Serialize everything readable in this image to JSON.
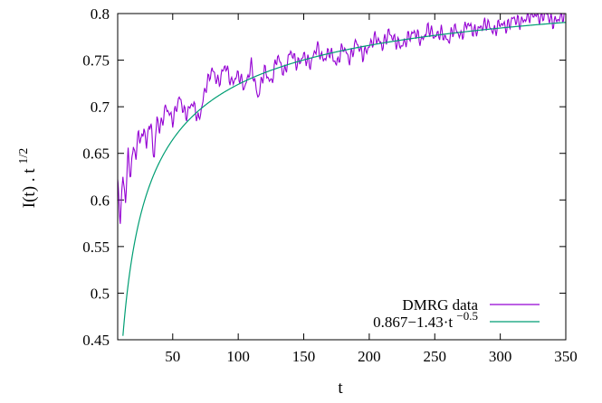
{
  "chart_data": {
    "type": "line",
    "xlabel": "t",
    "ylabel_main": "I(t) . t",
    "ylabel_sup": "1/2",
    "xlim": [
      8,
      350
    ],
    "ylim": [
      0.45,
      0.8
    ],
    "xticks": [
      50,
      100,
      150,
      200,
      250,
      300,
      350
    ],
    "xtick_labels": [
      "50",
      "100",
      "150",
      "200",
      "250",
      "300",
      "350"
    ],
    "yticks": [
      0.45,
      0.5,
      0.55,
      0.6,
      0.65,
      0.7,
      0.75,
      0.8
    ],
    "ytick_labels": [
      "0.45",
      "0.5",
      "0.55",
      "0.6",
      "0.65",
      "0.7",
      "0.75",
      "0.8"
    ],
    "grid": false,
    "legend_position": "bottom-right",
    "series": [
      {
        "name": "DMRG data",
        "color": "#9400d3",
        "x": [
          8,
          10,
          12,
          14,
          16,
          18,
          20,
          22,
          24,
          26,
          28,
          30,
          32,
          34,
          36,
          38,
          40,
          45,
          50,
          55,
          60,
          65,
          70,
          75,
          80,
          85,
          90,
          95,
          100,
          105,
          110,
          115,
          120,
          125,
          130,
          135,
          140,
          145,
          150,
          155,
          160,
          165,
          170,
          175,
          180,
          185,
          190,
          195,
          200,
          205,
          210,
          215,
          220,
          225,
          230,
          235,
          240,
          245,
          250,
          255,
          260,
          265,
          270,
          275,
          280,
          285,
          290,
          295,
          300,
          305,
          310,
          315,
          320,
          325,
          330,
          335,
          340,
          345,
          350
        ],
        "y": [
          0.615,
          0.58,
          0.625,
          0.6,
          0.65,
          0.625,
          0.66,
          0.645,
          0.675,
          0.66,
          0.68,
          0.655,
          0.685,
          0.67,
          0.645,
          0.69,
          0.675,
          0.7,
          0.685,
          0.71,
          0.69,
          0.705,
          0.685,
          0.72,
          0.74,
          0.725,
          0.745,
          0.725,
          0.735,
          0.72,
          0.745,
          0.71,
          0.74,
          0.725,
          0.755,
          0.735,
          0.76,
          0.745,
          0.755,
          0.745,
          0.765,
          0.75,
          0.76,
          0.745,
          0.765,
          0.75,
          0.77,
          0.755,
          0.765,
          0.775,
          0.765,
          0.78,
          0.77,
          0.765,
          0.775,
          0.78,
          0.77,
          0.785,
          0.775,
          0.78,
          0.77,
          0.785,
          0.775,
          0.79,
          0.78,
          0.785,
          0.79,
          0.78,
          0.79,
          0.785,
          0.795,
          0.79,
          0.795,
          0.8,
          0.795,
          0.8,
          0.79,
          0.795,
          0.8
        ],
        "wiggle_amplitude": 0.008
      },
      {
        "name": "0.867−1.43·t",
        "name_sup": "−0.5",
        "color": "#009e73",
        "function": {
          "a": 0.867,
          "b": 1.43,
          "exponent": -0.5
        }
      }
    ]
  }
}
